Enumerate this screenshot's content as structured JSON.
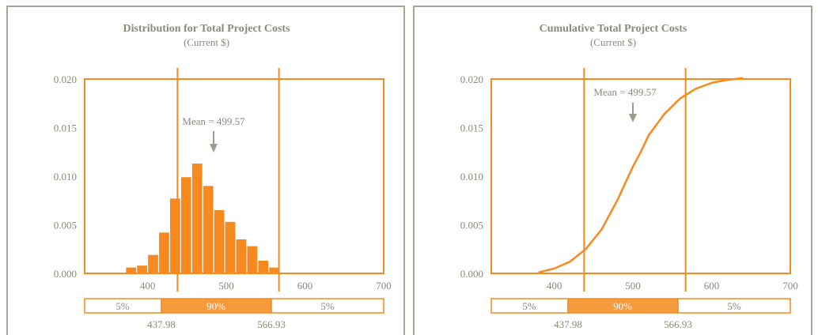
{
  "colors": {
    "accent": "#f7891f",
    "band_fill": "#f59a3d",
    "frame": "#a8a596",
    "text": "#8a8a7c",
    "arrow": "#9c9c8e"
  },
  "chart_data": [
    {
      "type": "bar",
      "title": "Distribution for Total Project Costs",
      "subtitle": "(Current $)",
      "xlim": [
        320,
        700
      ],
      "ylim": [
        0,
        0.02
      ],
      "x_ticks": [
        "400",
        "500",
        "600",
        "700"
      ],
      "x_tick_values": [
        400,
        500,
        600,
        700
      ],
      "y_ticks": [
        "0.000",
        "0.005",
        "0.010",
        "0.015",
        "0.020"
      ],
      "y_tick_values": [
        0,
        0.005,
        0.01,
        0.015,
        0.02
      ],
      "grid": false,
      "bins": {
        "left_edges": [
          372,
          386,
          400,
          414,
          428,
          442,
          456,
          470,
          484,
          498,
          512,
          526,
          540,
          554,
          568,
          582
        ],
        "width": 14,
        "values": [
          0.0006,
          0.0008,
          0.0019,
          0.0042,
          0.0077,
          0.0099,
          0.0113,
          0.009,
          0.0065,
          0.0053,
          0.0035,
          0.0028,
          0.0013,
          0.0006,
          0.0,
          0.0
        ]
      },
      "markers": [
        437.98,
        566.93
      ],
      "mean": {
        "label": "Mean = 499.57",
        "value": 499.57
      },
      "band": {
        "left_label": "5%",
        "middle_label": "90%",
        "right_label": "5%",
        "low": "437.98",
        "high": "566.93"
      }
    },
    {
      "type": "line",
      "title": "Cumulative Total Project Costs",
      "subtitle": "(Current $)",
      "xlim": [
        320,
        700
      ],
      "ylim": [
        0,
        0.02
      ],
      "x_ticks": [
        "400",
        "500",
        "600",
        "700"
      ],
      "x_tick_values": [
        400,
        500,
        600,
        700
      ],
      "y_ticks": [
        "0.000",
        "0.005",
        "0.010",
        "0.015",
        "0.020"
      ],
      "y_tick_values": [
        0,
        0.005,
        0.01,
        0.015,
        0.02
      ],
      "grid": false,
      "series": [
        {
          "x": [
            380,
            400,
            420,
            440,
            460,
            480,
            500,
            510,
            520,
            540,
            560,
            580,
            600,
            620,
            640
          ],
          "values": [
            0.0001,
            0.0005,
            0.0012,
            0.0025,
            0.0045,
            0.0075,
            0.011,
            0.0125,
            0.0142,
            0.0164,
            0.018,
            0.019,
            0.0196,
            0.0199,
            0.0201
          ]
        }
      ],
      "markers": [
        437.98,
        566.93
      ],
      "mean": {
        "label": "Mean = 499.57",
        "value": 499.57
      },
      "band": {
        "left_label": "5%",
        "middle_label": "90%",
        "right_label": "5%",
        "low": "437.98",
        "high": "566.93"
      }
    }
  ]
}
